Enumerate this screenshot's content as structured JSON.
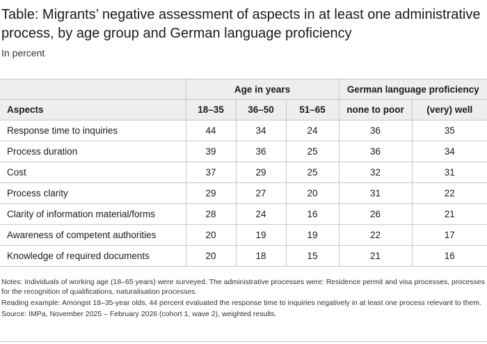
{
  "title": "Table: Migrants’ negative assessment of aspects in at least one administrative process, by age group and German language proficiency",
  "subtitle": "In percent",
  "table": {
    "group_headers": {
      "age": "Age in years",
      "language": "German language proficiency"
    },
    "columns": [
      "Aspects",
      "18–35",
      "36–50",
      "51–65",
      "none to poor",
      "(very) well"
    ],
    "rows": [
      {
        "aspect": "Response time to inquiries",
        "values": [
          "44",
          "34",
          "24",
          "36",
          "35"
        ]
      },
      {
        "aspect": "Process duration",
        "values": [
          "39",
          "36",
          "25",
          "36",
          "34"
        ]
      },
      {
        "aspect": "Cost",
        "values": [
          "37",
          "29",
          "25",
          "32",
          "31"
        ]
      },
      {
        "aspect": "Process clarity",
        "values": [
          "29",
          "27",
          "20",
          "31",
          "22"
        ]
      },
      {
        "aspect": "Clarity of information material/forms",
        "values": [
          "28",
          "24",
          "16",
          "26",
          "21"
        ]
      },
      {
        "aspect": "Awareness of competent authorities",
        "values": [
          "20",
          "19",
          "19",
          "22",
          "17"
        ]
      },
      {
        "aspect": "Knowledge of required documents",
        "values": [
          "20",
          "18",
          "15",
          "21",
          "16"
        ]
      }
    ]
  },
  "notes": [
    "Notes: Individuals of working age (18–65 years) were surveyed. The administrative processes were: Residence permit and visa processes, processes for the recognition of qualifications, naturalisation processes.",
    "Reading example: Amongst 18–35-year olds, 44 percent evaluated the response time to inquiries negatively in at least one process relevant to them.",
    "Source: IMPa, November 2025 – February 2026 (cohort 1, wave 2), weighted results."
  ]
}
